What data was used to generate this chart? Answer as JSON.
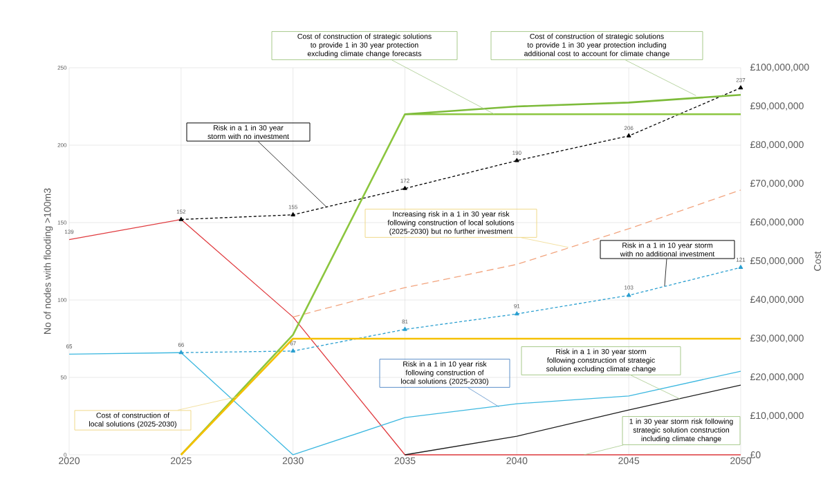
{
  "chart_data": {
    "type": "line",
    "ylabel": "No of nodes with flooding >100m3",
    "y2label": "Cost",
    "xlim": [
      2020,
      2050
    ],
    "xticks": [
      2020,
      2025,
      2030,
      2035,
      2040,
      2045,
      2050
    ],
    "ylim": [
      0,
      250
    ],
    "yticks": [
      0,
      50,
      100,
      150,
      200,
      250
    ],
    "y2lim": [
      0,
      100000000
    ],
    "y2ticks": [
      {
        "value": 0,
        "label": "£0"
      },
      {
        "value": 10000000,
        "label": "£10,000,000"
      },
      {
        "value": 20000000,
        "label": "£20,000,000"
      },
      {
        "value": 30000000,
        "label": "£30,000,000"
      },
      {
        "value": 40000000,
        "label": "£40,000,000"
      },
      {
        "value": 50000000,
        "label": "£50,000,000"
      },
      {
        "value": 60000000,
        "label": "£60,000,000"
      },
      {
        "value": 70000000,
        "label": "£70,000,000"
      },
      {
        "value": 80000000,
        "label": "£80,000,000"
      },
      {
        "value": 90000000,
        "label": "£90,000,000"
      },
      {
        "value": 100000000,
        "label": "£100,000,000"
      }
    ],
    "grid": true,
    "series": [
      {
        "color": "#e03a3e",
        "line_style": "solid",
        "marker": "none",
        "x": [
          2020,
          2025,
          2030,
          2035,
          2040,
          2045,
          2050
        ],
        "values": [
          139,
          152,
          89,
          0,
          0,
          0,
          0
        ],
        "value_labels": [
          "139",
          "152",
          null,
          null,
          null,
          null,
          null
        ]
      },
      {
        "color": "#000000",
        "line_style": "dashed",
        "marker": "triangle",
        "x": [
          2025,
          2030,
          2035,
          2040,
          2045,
          2050
        ],
        "values": [
          152,
          155,
          172,
          190,
          206,
          237
        ],
        "value_labels": [
          null,
          "155",
          "172",
          "190",
          "206",
          "237"
        ]
      },
      {
        "color": "#3db8e0",
        "line_style": "solid",
        "marker": "none",
        "x": [
          2020,
          2025,
          2030,
          2035,
          2040,
          2045,
          2050
        ],
        "values": [
          65,
          66,
          0,
          24,
          33,
          38,
          54
        ],
        "value_labels": [
          "65",
          "66",
          null,
          null,
          null,
          null,
          null
        ]
      },
      {
        "color": "#2a9fd0",
        "line_style": "dashed",
        "marker": "triangle",
        "x": [
          2025,
          2030,
          2035,
          2040,
          2045,
          2050
        ],
        "values": [
          66,
          67,
          81,
          91,
          103,
          121
        ],
        "value_labels": [
          null,
          "67",
          "81",
          "91",
          "103",
          "121"
        ]
      },
      {
        "color": "#f2a47e",
        "line_style": "dashed",
        "marker": "none",
        "x": [
          2030,
          2035,
          2040,
          2045,
          2050
        ],
        "values": [
          89,
          108,
          123,
          146,
          171
        ]
      },
      {
        "color": "#1a1a1a",
        "line_style": "solid",
        "marker": "none",
        "x": [
          2035,
          2040,
          2045,
          2050
        ],
        "values": [
          0,
          12,
          29,
          45
        ]
      },
      {
        "axis": "y2",
        "color": "#8cc63f",
        "line_style": "solid",
        "marker": "none",
        "x": [
          2025,
          2030,
          2035,
          2040,
          2045,
          2050
        ],
        "values": [
          0,
          31000000,
          88000000,
          88000000,
          88000000,
          88000000
        ]
      },
      {
        "axis": "y2",
        "color": "#7dbb3a",
        "line_style": "solid",
        "marker": "none",
        "x": [
          2035,
          2040,
          2045,
          2050
        ],
        "values": [
          88000000,
          90000000,
          91000000,
          93000000
        ]
      },
      {
        "axis": "y2",
        "color": "#f5c000",
        "line_style": "solid",
        "marker": "none",
        "x": [
          2025,
          2030,
          2035,
          2040,
          2045,
          2050
        ],
        "values": [
          0,
          30000000,
          30000000,
          30000000,
          30000000,
          30000000
        ]
      }
    ],
    "annotations": [
      {
        "text": "Cost of construction of strategic solutions to provide 1 in 30 year protection excluding climate change forecasts",
        "x": 2039,
        "y": 220
      },
      {
        "text": "Cost of construction of strategic solutions to provide 1 in 30 year protection including additional cost to account for climate change",
        "x": 2048,
        "y": 232
      },
      {
        "text": "Risk in a 1 in 30 year storm with no investment",
        "x": 2031.5,
        "y": 160
      },
      {
        "text": "Increasing risk in a 1 in 30 year risk following construction of local solutions (2025-2030) but no further investment",
        "x": 2042.3,
        "y": 134
      },
      {
        "text": "Risk in a 1 in 10 year storm with no additional investment",
        "x": 2046.6,
        "y": 109
      },
      {
        "text": "Cost of construction of local solutions (2025-2030)",
        "x": 2027.5,
        "y": 37.5
      },
      {
        "text": "Risk in a 1 in 10 year risk following construction of local solutions (2025-2030)",
        "x": 2039.2,
        "y": 31
      },
      {
        "text": "Risk in a 1 in 30 year storm following construction of strategic solution excluding climate change",
        "x": 2047.3,
        "y": 36
      },
      {
        "text": "1 in 30 year storm risk following strategic solution construction including climate change",
        "x": 2043,
        "y": 0
      }
    ]
  }
}
